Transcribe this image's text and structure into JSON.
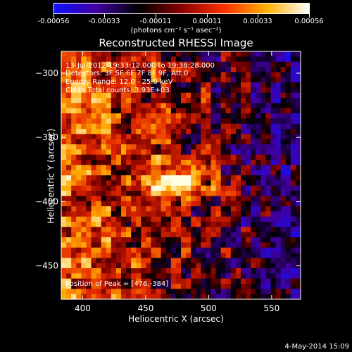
{
  "colorbar": {
    "ticks": [
      "-0.00056",
      "-0.00033",
      "-0.00011",
      "0.00011",
      "0.00033",
      "0.00056"
    ],
    "units": "(photons cm⁻² s⁻¹ asec⁻²)",
    "colors": [
      "#1010ff",
      "#4000a0",
      "#000000",
      "#8a0000",
      "#ff3000",
      "#ffb000",
      "#ffffff"
    ]
  },
  "chart_data": {
    "type": "heatmap",
    "title": "Reconstructed RHESSI Image",
    "xlabel": "Heliocentric X (arcsec)",
    "ylabel": "Heliocentric Y (arcsec)",
    "xlim": [
      383,
      573
    ],
    "ylim": [
      -476,
      -283
    ],
    "x_ticks": [
      400,
      450,
      500,
      550
    ],
    "y_ticks": [
      -300,
      -350,
      -400,
      -450
    ],
    "peak": [
      476,
      -384
    ]
  },
  "annotations": {
    "time_range": "13-Jul-2012 19:33:12.000 to 19:38:28.000",
    "detectors": "Detectors: 3F 5F 6F 7F 8F 9F, Att 0",
    "energy": "Energy Range: 12.0 - 25.0 keV",
    "clean": "Clean     Total counts: 3.93E+03",
    "peak": "Position of Peak = [476,-384]"
  },
  "timestamp": "4-May-2014 15:09"
}
